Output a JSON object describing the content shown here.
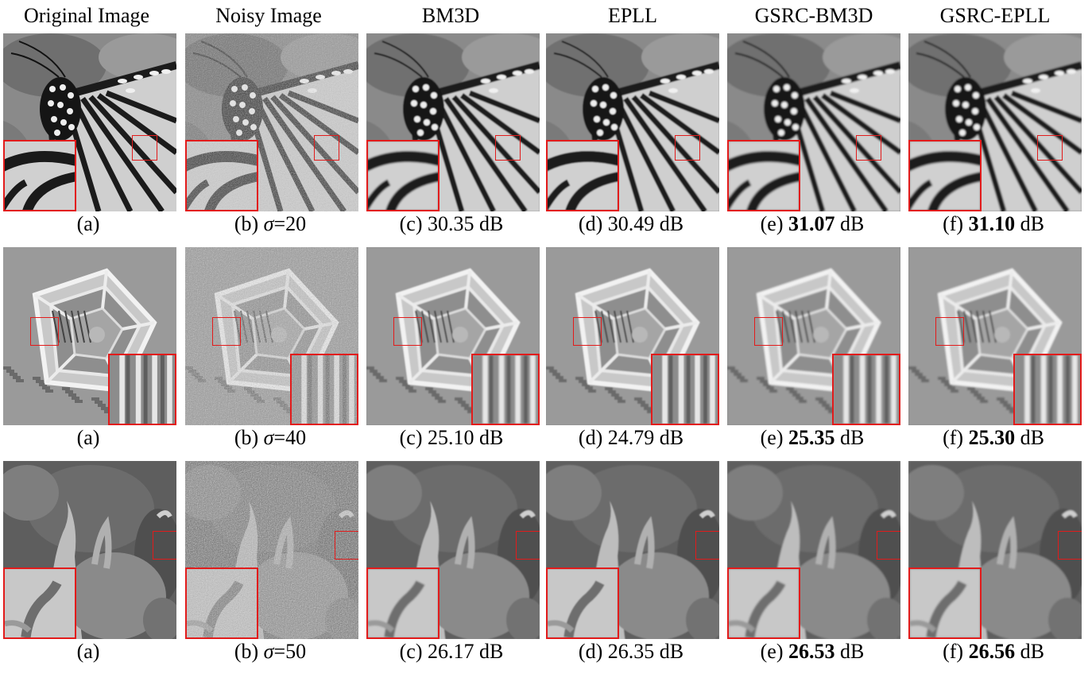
{
  "headers": [
    "Original Image",
    "Noisy Image",
    "BM3D",
    "EPLL",
    "GSRC-BM3D",
    "GSRC-EPLL"
  ],
  "rows": [
    {
      "image": "butterfly",
      "captions": [
        {
          "prefix": "(a)",
          "value": "",
          "unit": "",
          "bold": false
        },
        {
          "prefix": "(b)",
          "sigma_symbol": "σ",
          "sigma_value": "=20"
        },
        {
          "prefix": "(c)",
          "value": "30.35",
          "unit": "dB",
          "bold": false
        },
        {
          "prefix": "(d)",
          "value": "30.49",
          "unit": "dB",
          "bold": false
        },
        {
          "prefix": "(e)",
          "value": "31.07",
          "unit": "dB",
          "bold": true
        },
        {
          "prefix": "(f)",
          "value": "31.10",
          "unit": "dB",
          "bold": true
        }
      ]
    },
    {
      "image": "pentagon",
      "captions": [
        {
          "prefix": "(a)",
          "value": "",
          "unit": "",
          "bold": false
        },
        {
          "prefix": "(b)",
          "sigma_symbol": "σ",
          "sigma_value": "=40"
        },
        {
          "prefix": "(c)",
          "value": "25.10",
          "unit": "dB",
          "bold": false
        },
        {
          "prefix": "(d)",
          "value": "24.79",
          "unit": "dB",
          "bold": false
        },
        {
          "prefix": "(e)",
          "value": "25.35",
          "unit": "dB",
          "bold": true
        },
        {
          "prefix": "(f)",
          "value": "25.30",
          "unit": "dB",
          "bold": true
        }
      ]
    },
    {
      "image": "peppers",
      "captions": [
        {
          "prefix": "(a)",
          "value": "",
          "unit": "",
          "bold": false
        },
        {
          "prefix": "(b)",
          "sigma_symbol": "σ",
          "sigma_value": "=50"
        },
        {
          "prefix": "(c)",
          "value": "26.17",
          "unit": "dB",
          "bold": false
        },
        {
          "prefix": "(d)",
          "value": "26.35",
          "unit": "dB",
          "bold": false
        },
        {
          "prefix": "(e)",
          "value": "26.53",
          "unit": "dB",
          "bold": true
        },
        {
          "prefix": "(f)",
          "value": "26.56",
          "unit": "dB",
          "bold": true
        }
      ]
    }
  ],
  "colors": {
    "highlight": "#e21b1b"
  }
}
